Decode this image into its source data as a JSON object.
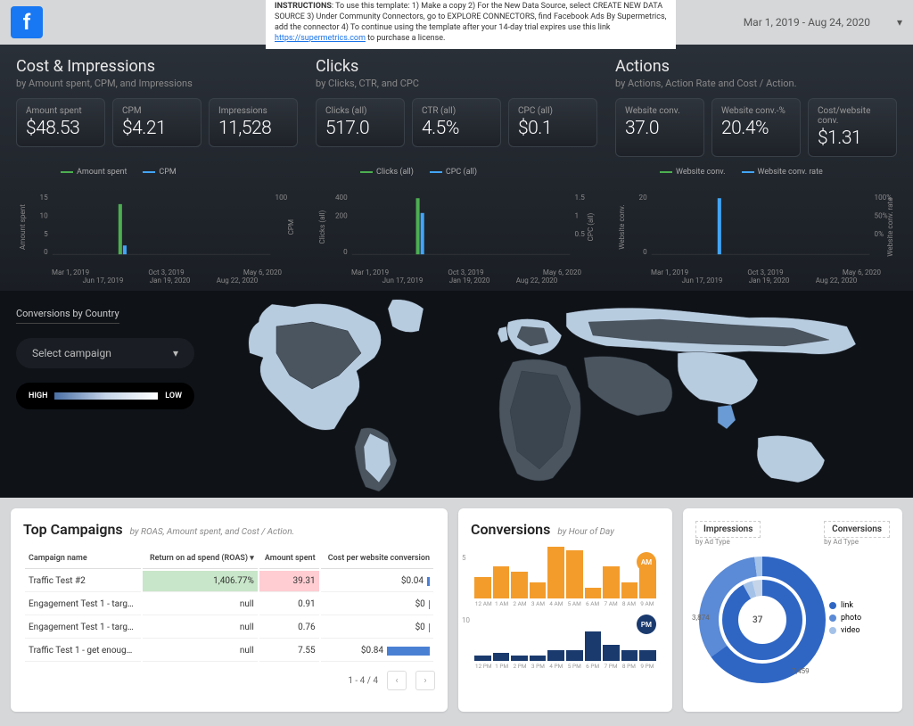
{
  "header": {
    "instructions_label": "INSTRUCTIONS",
    "instructions_text": ": To use this template: 1) Make a copy 2) For the New Data Source, select CREATE NEW DATA SOURCE 3) Under Community Connectors, go to EXPLORE CONNECTORS, find Facebook Ads By Supermetrics, add the connector 4) To continue using the template after your 14-day trial expires use this link ",
    "instructions_link": "https://supermetrics.com",
    "instructions_tail": " to purchase a license.",
    "date_range": "Mar 1, 2019 - Aug 24, 2020"
  },
  "groups": [
    {
      "title": "Cost & Impressions",
      "subtitle": "by Amount spent, CPM, and Impressions",
      "cards": [
        {
          "label": "Amount spent",
          "value": "$48.53"
        },
        {
          "label": "CPM",
          "value": "$4.21"
        },
        {
          "label": "Impressions",
          "value": "11,528"
        }
      ],
      "chart": {
        "legend": [
          {
            "label": "Amount spent",
            "color": "#4caf50"
          },
          {
            "label": "CPM",
            "color": "#42a5f5"
          }
        ],
        "y1_label": "Amount spent",
        "y2_label": "CPM",
        "y1_ticks": [
          "15",
          "10",
          "5",
          "0"
        ],
        "y2_ticks": [
          "100",
          "",
          "",
          ""
        ],
        "x_ticks1": [
          "Mar 1, 2019",
          "Oct 3, 2019",
          "May 6, 2020"
        ],
        "x_ticks2": [
          "Jun 17, 2019",
          "Jan 19, 2020",
          "Aug 22, 2020"
        ],
        "bars": [
          {
            "x": 0.33,
            "h1": 0.85,
            "h2": 0.15,
            "c1": "#4caf50",
            "c2": "#42a5f5"
          }
        ]
      }
    },
    {
      "title": "Clicks",
      "subtitle": "by Clicks, CTR, and CPC",
      "cards": [
        {
          "label": "Clicks (all)",
          "value": "517.0"
        },
        {
          "label": "CTR (all)",
          "value": "4.5%"
        },
        {
          "label": "CPC (all)",
          "value": "$0.1"
        }
      ],
      "chart": {
        "legend": [
          {
            "label": "Clicks (all)",
            "color": "#4caf50"
          },
          {
            "label": "CPC (all)",
            "color": "#42a5f5"
          }
        ],
        "y1_label": "Clicks (all)",
        "y2_label": "CPC (all)",
        "y1_ticks": [
          "400",
          "200",
          "",
          "0"
        ],
        "y2_ticks": [
          "1.5",
          "1",
          "0.5",
          ""
        ],
        "x_ticks1": [
          "Mar 1, 2019",
          "Oct 3, 2019",
          "May 6, 2020"
        ],
        "x_ticks2": [
          "Jun 17, 2019",
          "Jan 19, 2020",
          "Aug 22, 2020"
        ],
        "bars": [
          {
            "x": 0.32,
            "h1": 0.95,
            "h2": 0.7,
            "c1": "#4caf50",
            "c2": "#42a5f5"
          }
        ]
      }
    },
    {
      "title": "Actions",
      "subtitle": "by Actions, Action Rate and Cost / Action.",
      "cards": [
        {
          "label": "Website conv.",
          "value": "37.0"
        },
        {
          "label": "Website conv.-%",
          "value": "20.4%"
        },
        {
          "label": "Cost/website conv.",
          "value": "$1.31"
        }
      ],
      "chart": {
        "legend": [
          {
            "label": "Website conv.",
            "color": "#4caf50"
          },
          {
            "label": "Website conv. rate",
            "color": "#42a5f5"
          }
        ],
        "y1_label": "Website conv.",
        "y2_label": "Website conv. rate",
        "y1_ticks": [
          "20",
          "",
          "",
          "0"
        ],
        "y2_ticks": [
          "100%",
          "50%",
          "0%",
          ""
        ],
        "x_ticks1": [
          "Mar 1, 2019",
          "Oct 3, 2019",
          "May 6, 2020"
        ],
        "x_ticks2": [
          "Jun 17, 2019",
          "Jan 19, 2020",
          "Aug 22, 2020"
        ],
        "bars": [
          {
            "x": 0.33,
            "h1": 0.95,
            "h2": 0.0,
            "c1": "#42a5f5",
            "c2": "#42a5f5"
          }
        ]
      }
    }
  ],
  "map": {
    "title": "Conversions by Country",
    "select_label": "Select campaign",
    "high_label": "HIGH",
    "low_label": "LOW",
    "land_color": "#4a5560",
    "highlight_color": "#b8cce0",
    "ocean_color": "#0f1318"
  },
  "campaigns": {
    "title": "Top Campaigns",
    "subtitle": "by ROAS, Amount spent, and Cost / Action.",
    "columns": [
      "Campaign name",
      "Return on ad spend (ROAS)",
      "Amount spent",
      "Cost per website conversion"
    ],
    "rows": [
      {
        "name": "Traffic Test #2",
        "roas": "1,406.77%",
        "spent": "39.31",
        "cost": "$0.04",
        "bar": 0.05,
        "roas_bg": "#c8e6c9",
        "spent_bg": "#ffcdd2"
      },
      {
        "name": "Engagement Test 1 - targ…",
        "roas": "null",
        "spent": "0.91",
        "cost": "$0",
        "bar": 0.02,
        "roas_bg": "",
        "spent_bg": ""
      },
      {
        "name": "Engagement Test 1 - targ…",
        "roas": "null",
        "spent": "0.76",
        "cost": "$0",
        "bar": 0.02,
        "roas_bg": "",
        "spent_bg": ""
      },
      {
        "name": "Traffic Test 1 - get enoug…",
        "roas": "null",
        "spent": "7.55",
        "cost": "$0.84",
        "bar": 0.8,
        "roas_bg": "",
        "spent_bg": ""
      }
    ],
    "paginator": "1 - 4 / 4"
  },
  "conversions_hour": {
    "title": "Conversions",
    "subtitle": "by Hour of Day",
    "am": {
      "badge": "AM",
      "badge_color": "#f39c2c",
      "ymax": 5,
      "labels": [
        "12 AM",
        "1 AM",
        "2 AM",
        "3 AM",
        "4 AM",
        "5 AM",
        "6 AM",
        "7 AM",
        "8 AM",
        "9 AM"
      ],
      "values": [
        2,
        3,
        2.5,
        1.5,
        4.8,
        4.5,
        1,
        3,
        1.5,
        3.5
      ],
      "color": "#f39c2c"
    },
    "pm": {
      "badge": "PM",
      "badge_color": "#1a3a6e",
      "ymax": 10,
      "labels": [
        "12 PM",
        "1 PM",
        "2 PM",
        "3 PM",
        "4 PM",
        "5 PM",
        "6 PM",
        "7 PM",
        "8 PM",
        "9 PM"
      ],
      "values": [
        1,
        1.5,
        1,
        1,
        2,
        2,
        5.5,
        3,
        2,
        2
      ],
      "color": "#1a3a6e"
    }
  },
  "donut": {
    "left_title": "Impressions",
    "left_sub": "by Ad Type",
    "right_title": "Conversions",
    "right_sub": "by Ad Type",
    "center_value": "37",
    "outer_annot": "7,459",
    "inner_annot": "3,874",
    "legend": [
      {
        "label": "link",
        "color": "#2f66c4"
      },
      {
        "label": "photo",
        "color": "#5b8ad6"
      },
      {
        "label": "video",
        "color": "#a4c2e8"
      }
    ],
    "outer_segments": [
      {
        "frac": 0.65,
        "color": "#2f66c4"
      },
      {
        "frac": 0.33,
        "color": "#5b8ad6"
      },
      {
        "frac": 0.02,
        "color": "#a4c2e8"
      }
    ],
    "inner_segments": [
      {
        "frac": 0.92,
        "color": "#2f66c4"
      },
      {
        "frac": 0.04,
        "color": "#a4c2e8"
      },
      {
        "frac": 0.04,
        "color": "#c5d4e8"
      }
    ]
  }
}
